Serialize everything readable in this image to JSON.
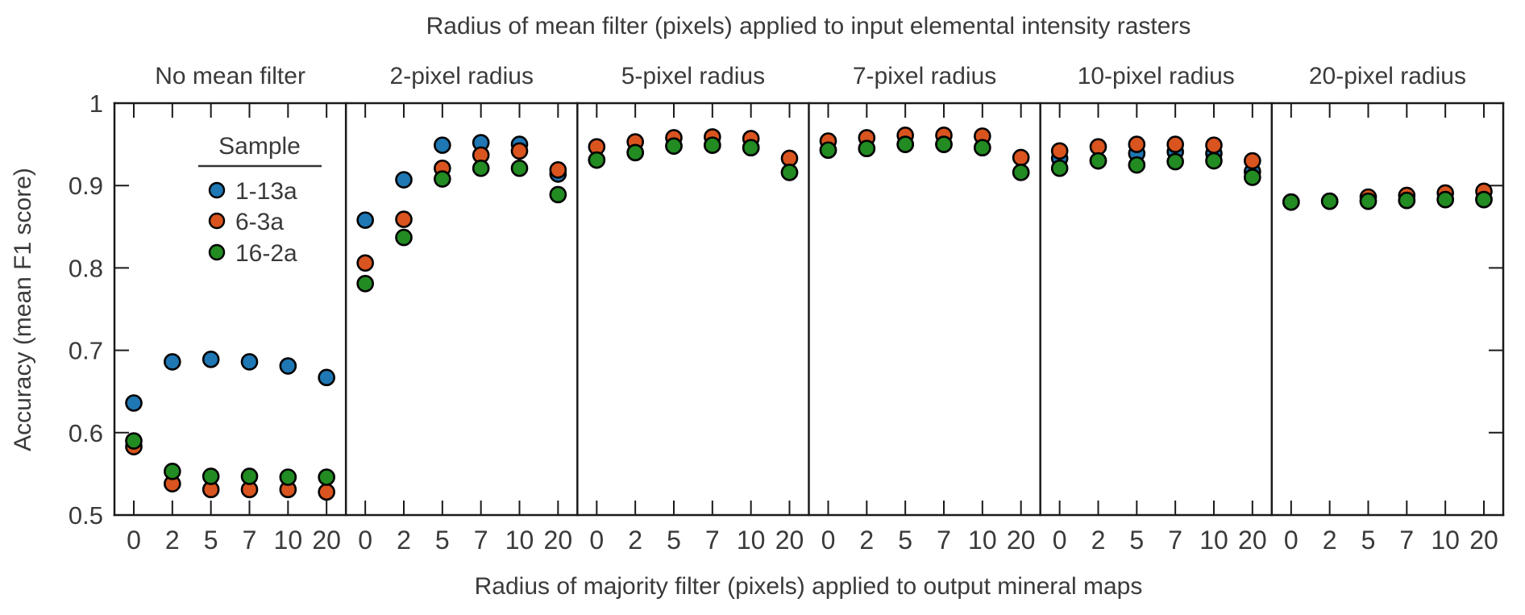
{
  "chart_data": {
    "type": "scatter",
    "title": "Radius of mean filter (pixels) applied to input elemental intensity rasters",
    "xlabel": "Radius of majority filter (pixels) applied to output mineral maps",
    "ylabel": "Accuracy (mean F1 score)",
    "ylim": [
      0.5,
      1.0
    ],
    "y_ticks": [
      1,
      0.9,
      0.8,
      0.7,
      0.6,
      0.5
    ],
    "y_tick_labels": [
      "1",
      "0.9",
      "0.8",
      "0.7",
      "0.6",
      "0.5"
    ],
    "x_categories": [
      "0",
      "2",
      "5",
      "7",
      "10",
      "20"
    ],
    "grid": false,
    "legend": {
      "title": "Sample",
      "position": "inside top-left panel 1",
      "entries": [
        {
          "label": "1-13a",
          "color": "#1f77b4"
        },
        {
          "label": "6-3a",
          "color": "#d9541e"
        },
        {
          "label": "16-2a",
          "color": "#228b22"
        }
      ]
    },
    "panels": [
      {
        "title": "No mean filter",
        "series": [
          {
            "name": "1-13a",
            "color": "#1f77b4",
            "values": [
              0.636,
              0.686,
              0.689,
              0.686,
              0.681,
              0.667
            ]
          },
          {
            "name": "6-3a",
            "color": "#d9541e",
            "values": [
              0.583,
              0.538,
              0.531,
              0.531,
              0.531,
              0.528
            ]
          },
          {
            "name": "16-2a",
            "color": "#228b22",
            "values": [
              0.59,
              0.553,
              0.547,
              0.547,
              0.546,
              0.546
            ]
          }
        ]
      },
      {
        "title": "2-pixel radius",
        "series": [
          {
            "name": "1-13a",
            "color": "#1f77b4",
            "values": [
              0.858,
              0.907,
              0.949,
              0.952,
              0.95,
              0.914
            ]
          },
          {
            "name": "6-3a",
            "color": "#d9541e",
            "values": [
              0.806,
              0.859,
              0.921,
              0.937,
              0.942,
              0.919
            ]
          },
          {
            "name": "16-2a",
            "color": "#228b22",
            "values": [
              0.781,
              0.837,
              0.908,
              0.921,
              0.921,
              0.889
            ]
          }
        ]
      },
      {
        "title": "5-pixel radius",
        "series": [
          {
            "name": "1-13a",
            "color": "#1f77b4",
            "values": [
              0.931,
              0.94,
              0.948,
              0.949,
              0.946,
              0.916
            ]
          },
          {
            "name": "6-3a",
            "color": "#d9541e",
            "values": [
              0.947,
              0.953,
              0.958,
              0.959,
              0.957,
              0.933
            ]
          },
          {
            "name": "16-2a",
            "color": "#228b22",
            "values": [
              0.931,
              0.94,
              0.948,
              0.949,
              0.946,
              0.916
            ]
          }
        ]
      },
      {
        "title": "7-pixel radius",
        "series": [
          {
            "name": "1-13a",
            "color": "#1f77b4",
            "values": [
              0.943,
              0.945,
              0.95,
              0.95,
              0.946,
              0.916
            ]
          },
          {
            "name": "6-3a",
            "color": "#d9541e",
            "values": [
              0.954,
              0.958,
              0.961,
              0.961,
              0.96,
              0.934
            ]
          },
          {
            "name": "16-2a",
            "color": "#228b22",
            "values": [
              0.943,
              0.945,
              0.95,
              0.95,
              0.946,
              0.916
            ]
          }
        ]
      },
      {
        "title": "10-pixel radius",
        "series": [
          {
            "name": "1-13a",
            "color": "#1f77b4",
            "values": [
              0.933,
              0.93,
              0.939,
              0.941,
              0.939,
              0.917
            ]
          },
          {
            "name": "6-3a",
            "color": "#d9541e",
            "values": [
              0.942,
              0.947,
              0.95,
              0.95,
              0.949,
              0.93
            ]
          },
          {
            "name": "16-2a",
            "color": "#228b22",
            "values": [
              0.921,
              0.93,
              0.925,
              0.929,
              0.93,
              0.91
            ]
          }
        ]
      },
      {
        "title": "20-pixel radius",
        "series": [
          {
            "name": "1-13a",
            "color": "#1f77b4",
            "values": [
              0.88,
              0.881,
              0.881,
              0.882,
              0.883,
              0.883
            ]
          },
          {
            "name": "6-3a",
            "color": "#d9541e",
            "values": [
              0.88,
              0.881,
              0.886,
              0.888,
              0.891,
              0.893
            ]
          },
          {
            "name": "16-2a",
            "color": "#228b22",
            "values": [
              0.88,
              0.881,
              0.881,
              0.882,
              0.883,
              0.883
            ]
          }
        ]
      }
    ]
  },
  "style": {
    "axis_color": "#1a1a1a",
    "text_color": "#3a3a3a",
    "marker_edge_color": "#000000"
  }
}
